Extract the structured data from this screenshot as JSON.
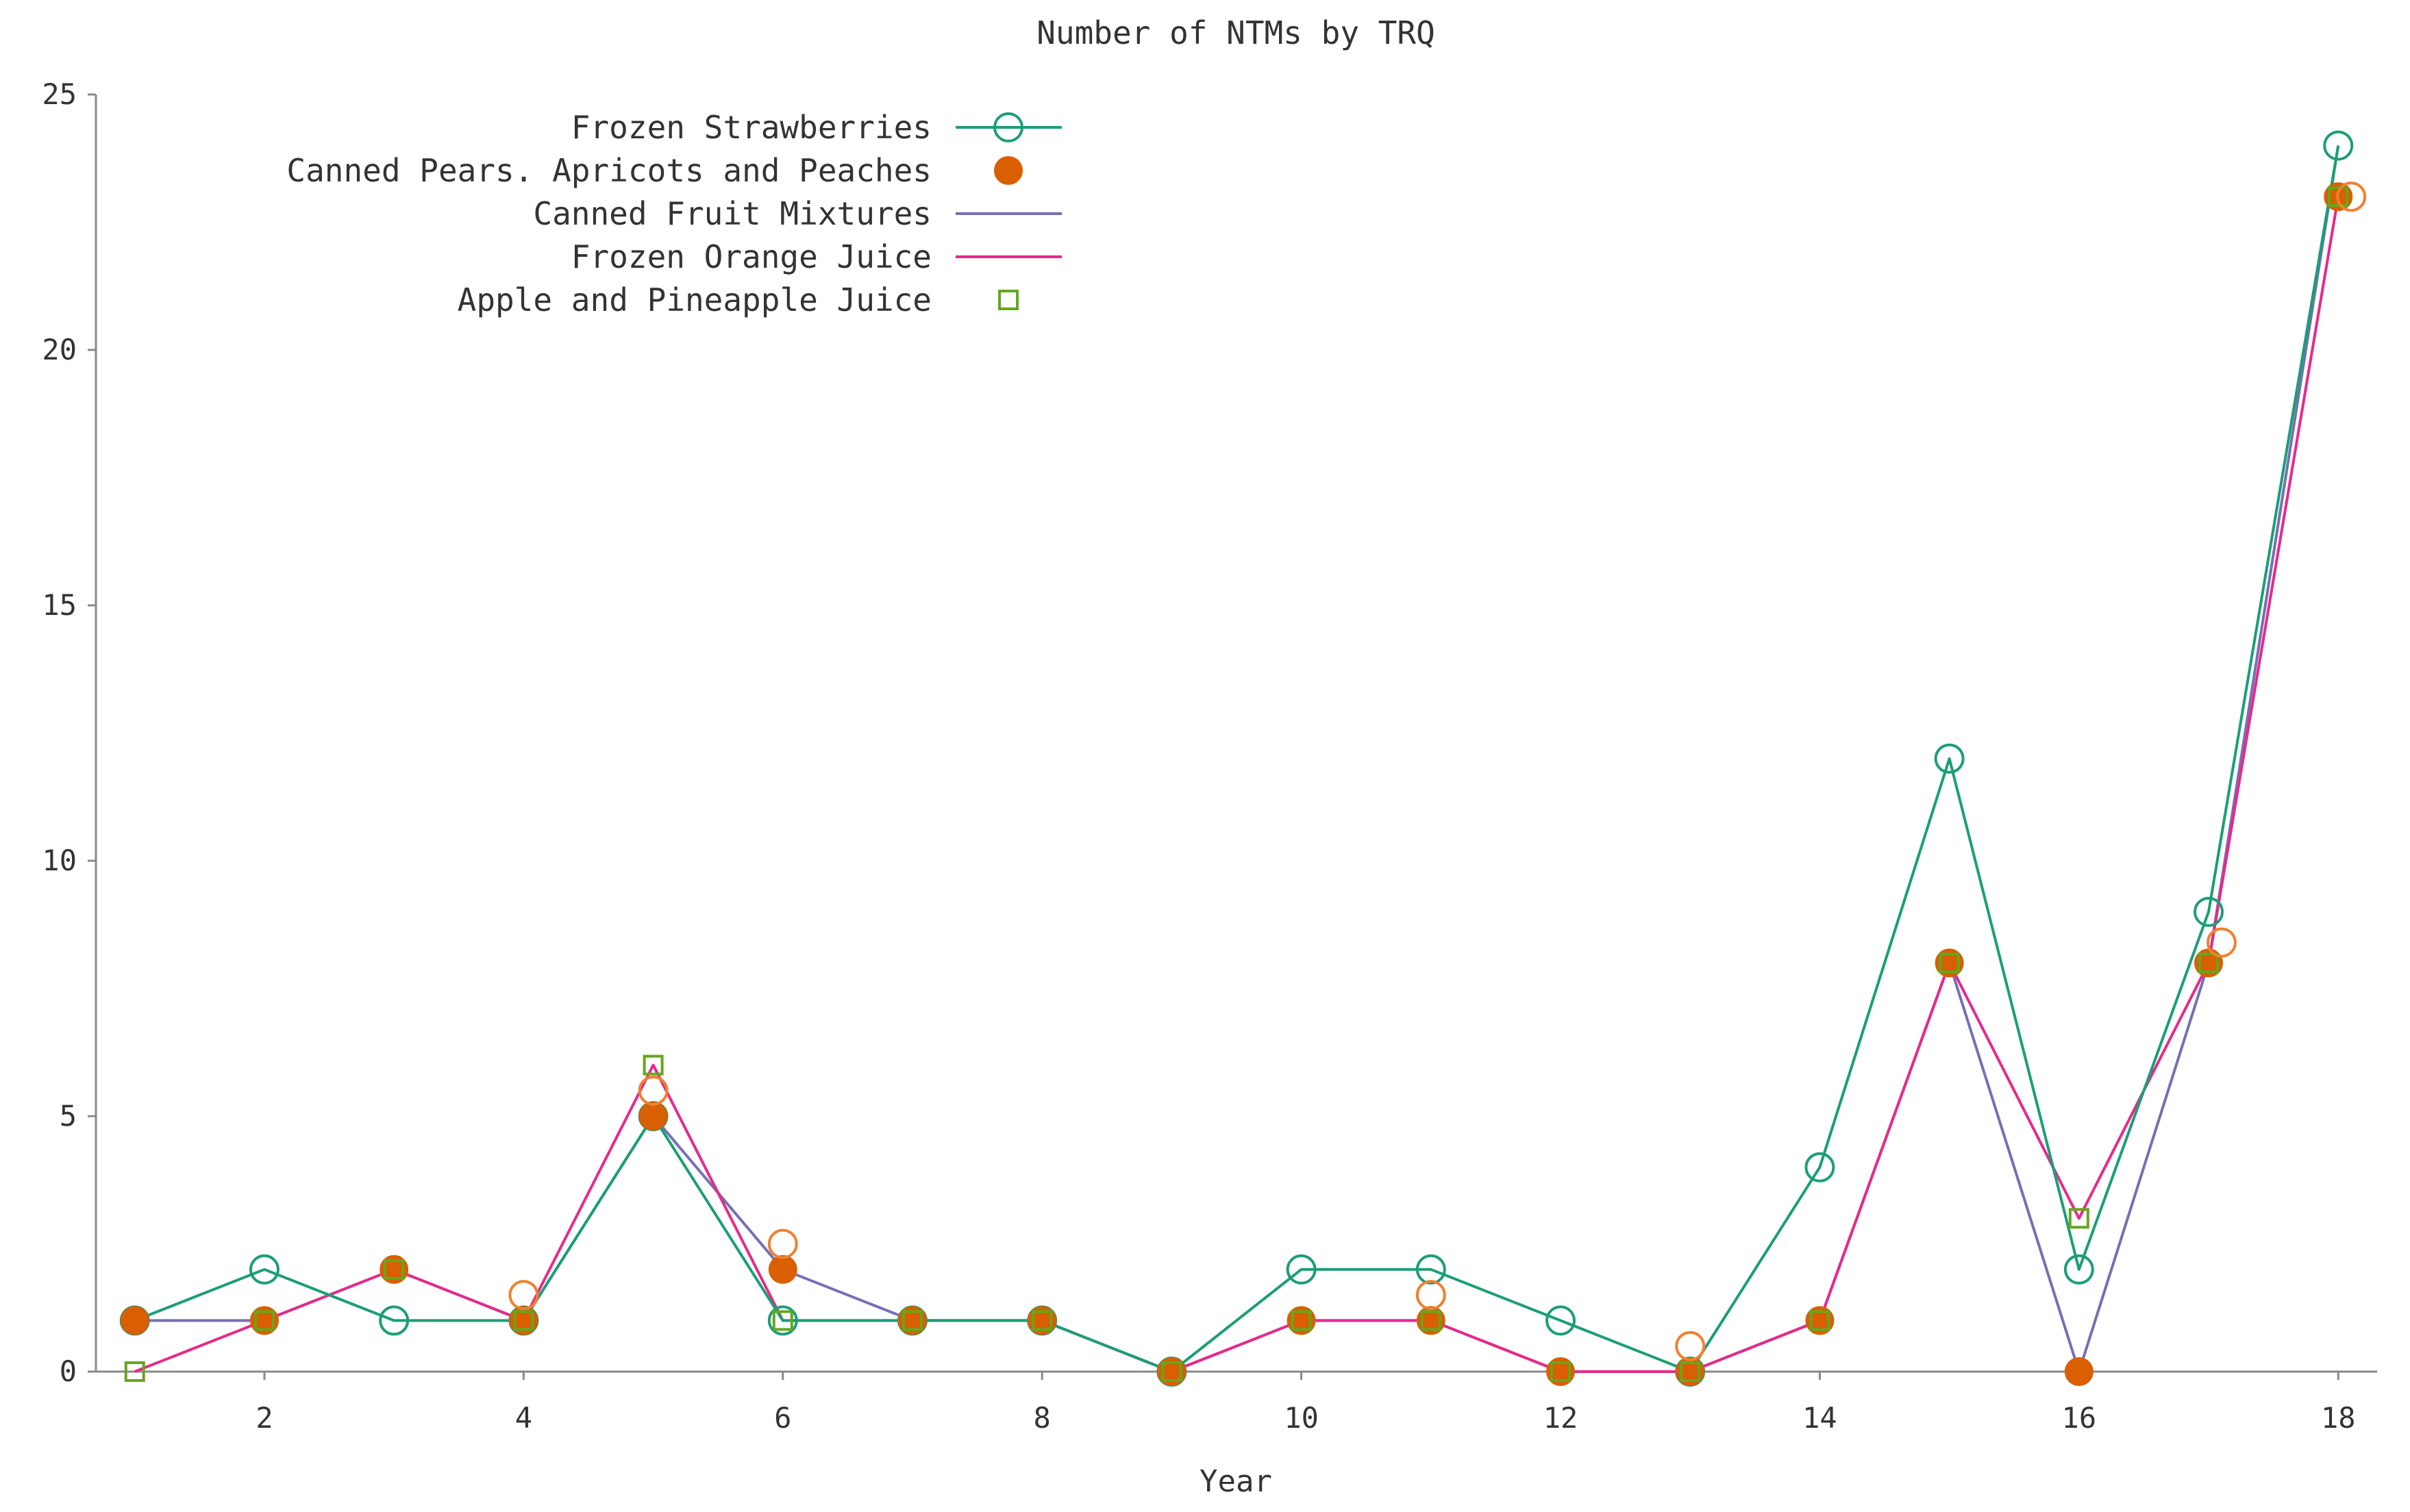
{
  "chart_data": {
    "type": "line",
    "title": "Number of NTMs by TRQ",
    "xlabel": "Year",
    "ylabel": "",
    "xlim": [
      0.7,
      18.3
    ],
    "ylim": [
      0,
      25
    ],
    "xticks": [
      2,
      4,
      6,
      8,
      10,
      12,
      14,
      16,
      18
    ],
    "yticks": [
      0,
      5,
      10,
      15,
      20,
      25
    ],
    "grid": false,
    "legend_position": "top-left",
    "x": [
      1,
      2,
      3,
      4,
      5,
      6,
      7,
      8,
      9,
      10,
      11,
      12,
      13,
      14,
      15,
      16,
      17,
      18
    ],
    "series": [
      {
        "name": "Frozen Strawberries",
        "color": "#1b9e77",
        "style": "line-open-circle",
        "values": [
          1,
          2,
          1,
          1,
          5,
          1,
          1,
          1,
          0,
          2,
          2,
          1,
          0,
          4,
          12,
          2,
          9,
          24
        ]
      },
      {
        "name": "Canned Pears. Apricots and Peaches",
        "color": "#d95f02",
        "style": "filled-circle",
        "values": [
          1,
          1,
          2,
          1,
          5,
          2,
          1,
          1,
          0,
          1,
          1,
          0,
          0,
          1,
          8,
          0,
          8,
          23
        ]
      },
      {
        "name": "Canned Fruit Mixtures",
        "color": "#7570b3",
        "style": "line",
        "values": [
          1,
          1,
          2,
          1,
          5,
          2,
          1,
          1,
          0,
          1,
          1,
          0,
          0,
          1,
          8,
          0,
          8,
          24
        ]
      },
      {
        "name": "Frozen Orange Juice",
        "color": "#e7298a",
        "style": "line",
        "values": [
          0,
          1,
          2,
          1,
          6,
          1,
          1,
          1,
          0,
          1,
          1,
          0,
          0,
          1,
          8,
          3,
          8,
          23
        ]
      },
      {
        "name": "Apple and Pineapple Juice",
        "color": "#66a61e",
        "style": "open-square",
        "values": [
          0,
          1,
          2,
          1,
          6,
          1,
          1,
          1,
          0,
          1,
          1,
          0,
          0,
          1,
          8,
          3,
          8,
          23
        ]
      }
    ],
    "extra_markers": {
      "color": "#f08030",
      "style": "open-circle",
      "points": [
        {
          "x": 4,
          "y": 1.5
        },
        {
          "x": 5,
          "y": 5.5
        },
        {
          "x": 6,
          "y": 2.5
        },
        {
          "x": 11,
          "y": 1.5
        },
        {
          "x": 13,
          "y": 0.5
        },
        {
          "x": 17.1,
          "y": 8.4
        },
        {
          "x": 18.1,
          "y": 23
        }
      ]
    }
  }
}
